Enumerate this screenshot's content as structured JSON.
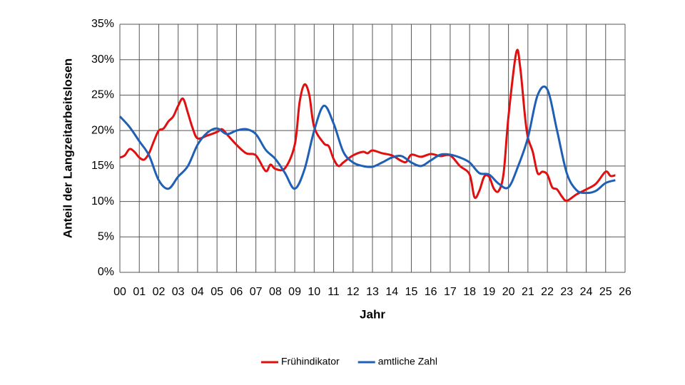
{
  "chart_data": {
    "type": "line",
    "ylabel": "Anteil der Langzeitarbeitslosen",
    "xlabel": "Jahr",
    "xlim": [
      0,
      26
    ],
    "ylim": [
      0,
      35
    ],
    "xticks": [
      {
        "value": 0,
        "label": "00"
      },
      {
        "value": 1,
        "label": "01"
      },
      {
        "value": 2,
        "label": "02"
      },
      {
        "value": 3,
        "label": "03"
      },
      {
        "value": 4,
        "label": "04"
      },
      {
        "value": 5,
        "label": "05"
      },
      {
        "value": 6,
        "label": "06"
      },
      {
        "value": 7,
        "label": "07"
      },
      {
        "value": 8,
        "label": "08"
      },
      {
        "value": 9,
        "label": "09"
      },
      10,
      11,
      12,
      13,
      14,
      15,
      16,
      17,
      18,
      19,
      20,
      21,
      22,
      23,
      24,
      25,
      26
    ],
    "yticks": [
      {
        "value": 0,
        "label": "0%"
      },
      {
        "value": 5,
        "label": "5%"
      },
      {
        "value": 10,
        "label": "10%"
      },
      {
        "value": 15,
        "label": "15%"
      },
      {
        "value": 20,
        "label": "20%"
      },
      {
        "value": 25,
        "label": "25%"
      },
      {
        "value": 30,
        "label": "30%"
      },
      {
        "value": 35,
        "label": "35%"
      }
    ],
    "grid": true,
    "legend": "bottom",
    "series": [
      {
        "name": "Frühindikator",
        "color": "#e01010",
        "x": [
          0,
          0.25,
          0.5,
          0.75,
          1,
          1.25,
          1.5,
          1.75,
          2,
          2.25,
          2.5,
          2.75,
          3,
          3.25,
          3.5,
          3.75,
          4,
          4.5,
          5,
          5.25,
          5.5,
          6,
          6.5,
          7,
          7.5,
          7.75,
          8,
          8.5,
          9,
          9.25,
          9.5,
          9.75,
          10,
          10.5,
          10.75,
          11,
          11.25,
          11.5,
          12,
          12.5,
          12.75,
          13,
          13.5,
          14,
          14.5,
          14.75,
          15,
          15.5,
          16,
          16.5,
          17,
          17.5,
          18,
          18.25,
          18.5,
          18.75,
          19,
          19.25,
          19.5,
          19.75,
          20,
          20.4,
          20.6,
          20.85,
          21,
          21.25,
          21.5,
          21.75,
          22,
          22.25,
          22.5,
          22.75,
          23,
          23.5,
          24,
          24.5,
          25,
          25.25,
          25.5
        ],
        "values": [
          16.2,
          16.5,
          17.4,
          17,
          16.2,
          15.9,
          16.8,
          18.5,
          20,
          20.3,
          21.3,
          22,
          23.5,
          24.5,
          22.5,
          20.3,
          18.9,
          19.3,
          19.8,
          20.2,
          19.5,
          18,
          16.8,
          16.5,
          14.3,
          15.2,
          14.6,
          14.7,
          18,
          24,
          26.5,
          25,
          20.5,
          18.2,
          17.8,
          16,
          15,
          15.5,
          16.5,
          17,
          16.8,
          17.2,
          16.8,
          16.5,
          15.7,
          15.6,
          16.6,
          16.3,
          16.7,
          16.4,
          16.5,
          15,
          13.8,
          10.6,
          11.5,
          13.5,
          13.5,
          11.8,
          11.5,
          14,
          22,
          31,
          29,
          22,
          19,
          17,
          14,
          14.2,
          13.8,
          12,
          11.7,
          10.7,
          10.1,
          11,
          11.7,
          12.5,
          14.2,
          13.6,
          13.7
        ]
      },
      {
        "name": "amtliche Zahl",
        "color": "#1f5fb5",
        "x": [
          0,
          0.5,
          1,
          1.5,
          2,
          2.5,
          3,
          3.5,
          4,
          4.5,
          5,
          5.5,
          6,
          6.5,
          7,
          7.5,
          8,
          8.5,
          9,
          9.5,
          10,
          10.5,
          11,
          11.5,
          12,
          12.5,
          13,
          13.5,
          14,
          14.5,
          15,
          15.5,
          16,
          16.5,
          17,
          17.5,
          18,
          18.5,
          19,
          19.5,
          20,
          20.5,
          21,
          21.5,
          22,
          22.5,
          23,
          23.5,
          24,
          24.5,
          25,
          25.5
        ],
        "values": [
          22,
          20.5,
          18.5,
          16.5,
          13,
          11.8,
          13.5,
          15,
          18,
          19.7,
          20.3,
          19.5,
          20,
          20.2,
          19.5,
          17.3,
          16,
          14,
          11.8,
          14.5,
          20,
          23.5,
          21,
          17,
          15.5,
          15,
          14.9,
          15.5,
          16.2,
          16.4,
          15.5,
          15,
          15.8,
          16.6,
          16.6,
          16.2,
          15.5,
          14,
          13.8,
          12.5,
          12,
          15,
          19,
          25,
          25.8,
          20,
          14,
          11.6,
          11.2,
          11.5,
          12.6,
          13
        ]
      }
    ]
  }
}
